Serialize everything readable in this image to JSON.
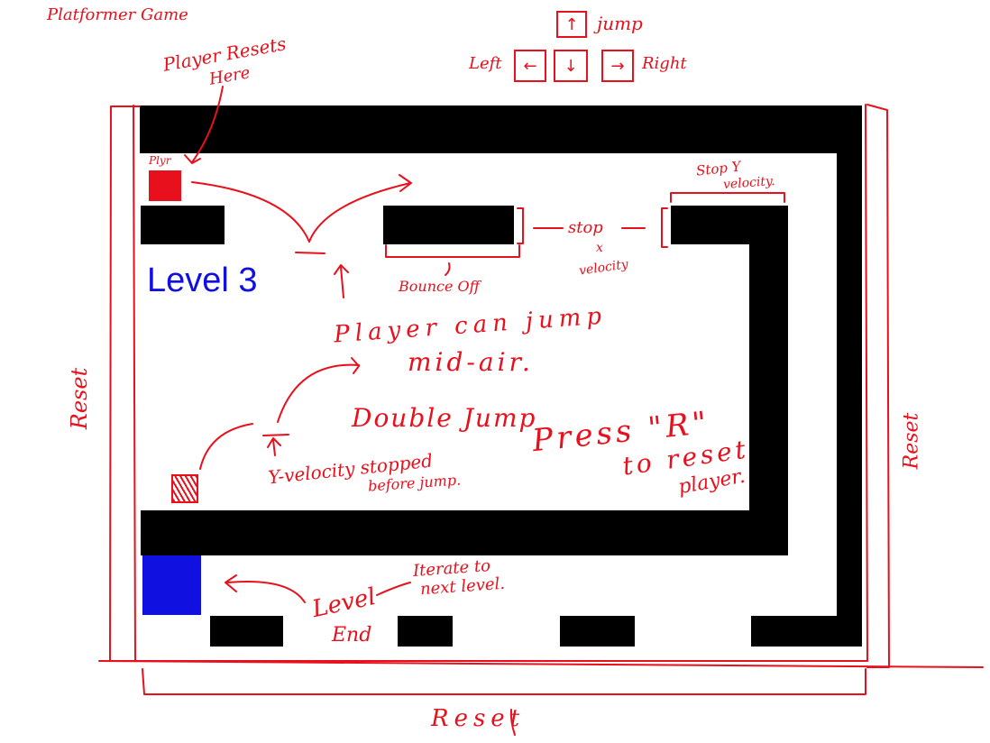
{
  "title": "Platformer Game",
  "controls": {
    "jump_key": "↑",
    "jump_label": "jump",
    "left_key": "←",
    "left_label": "Left",
    "down_key": "↓",
    "right_key": "→",
    "right_label": "Right"
  },
  "level_label": "Level 3",
  "notes": {
    "player_resets_1": "Player Resets",
    "player_resets_2": "Here",
    "player_marker": "Plyr",
    "bounce_off": "Bounce Off",
    "stop_x_1": "stop",
    "stop_x_2": "x",
    "stop_x_3": "velocity",
    "stop_y_1": "Stop Y",
    "stop_y_2": "velocity.",
    "player_can_jump_1": "Player can jump",
    "player_can_jump_2": "mid-air.",
    "double_jump": "Double Jump",
    "y_velocity_1": "Y-velocity stopped",
    "y_velocity_2": "before jump.",
    "press_r_1": "Press \"R\"",
    "press_r_2": "to reset",
    "press_r_3": "player.",
    "level_end_1": "Level",
    "level_end_2": "End",
    "iterate_1": "Iterate to",
    "iterate_2": "next level.",
    "reset_left": "Reset",
    "reset_right": "Reset",
    "reset_bottom": "Reset"
  },
  "colors": {
    "ink": "#e8101c",
    "player": "#e8101c",
    "goal": "#1010e0",
    "wall": "#000000"
  }
}
